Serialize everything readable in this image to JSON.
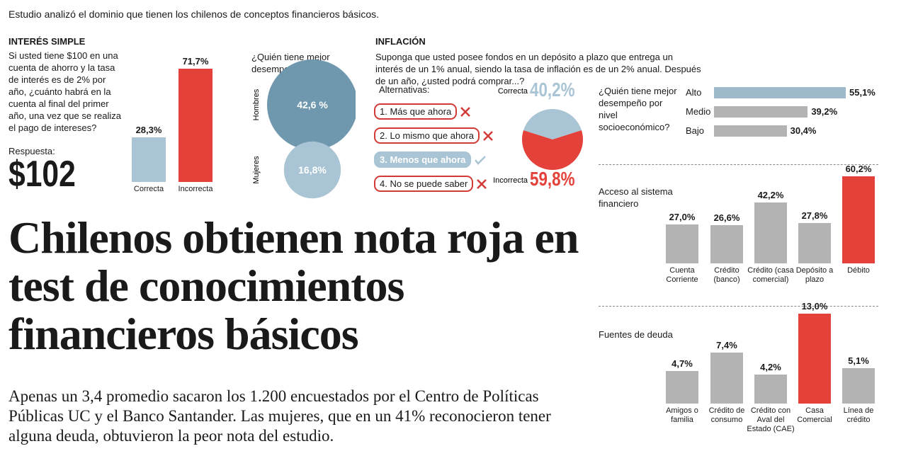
{
  "intro": "Estudio analizó el dominio que tienen los chilenos de conceptos financieros básicos.",
  "headline": "Chilenos obtienen nota roja en test de conocimientos financieros básicos",
  "body": "Apenas un 3,4 promedio sacaron los 1.200 encuestados por el Centro de Políticas Públicas UC y el Banco Santander. Las mujeres, que en un 41% reconocieron tener alguna deuda, obtuvieron la peor nota del estudio.",
  "chart_data": [
    {
      "type": "bar",
      "title": "INTERÉS SIMPLE",
      "question": "Si usted tiene $100 en una cuenta de ahorro y la tasa de interés es de 2% por año, ¿cuánto habrá en la cuenta al final del primer año, una vez que se realiza el pago de intereses?",
      "answer_label": "Respuesta:",
      "answer": "$102",
      "categories": [
        "Correcta",
        "Incorrecta"
      ],
      "values": [
        28.3,
        71.7
      ],
      "value_labels": [
        "28,3%",
        "71,7%"
      ],
      "colors": [
        "#a9c4d4",
        "#e5413b"
      ]
    },
    {
      "type": "bubble",
      "title": "¿Quién tiene mejor desempeño?",
      "categories": [
        "Hombres",
        "Mujeres"
      ],
      "values": [
        42.6,
        16.8
      ],
      "value_labels": [
        "42,6 %",
        "16,8%"
      ],
      "colors": [
        "#6f97ad",
        "#a9c4d4"
      ]
    },
    {
      "type": "pie",
      "title": "INFLACIÓN",
      "question": "Suponga que usted posee fondos en un depósito a plazo que entrega un interés de un 1% anual, siendo la tasa de inflación es de un 2% anual. Después de un año, ¿usted podrá comprar...?",
      "alternatives_title": "Alternativas:",
      "alternatives": [
        {
          "label": "1. Más que ahora",
          "correct": false
        },
        {
          "label": "2. Lo mismo que ahora",
          "correct": false
        },
        {
          "label": "3. Menos que ahora",
          "correct": true
        },
        {
          "label": "4. No se puede saber",
          "correct": false
        }
      ],
      "categories": [
        "Correcta",
        "Incorrecta"
      ],
      "values": [
        40.2,
        59.8
      ],
      "value_labels": [
        "40,2%",
        "59,8%"
      ],
      "colors": [
        "#a9c4d4",
        "#e5413b"
      ]
    },
    {
      "type": "hbar",
      "title": "¿Quién tiene mejor desempeño por nivel socioeconómico?",
      "categories": [
        "Alto",
        "Medio",
        "Bajo"
      ],
      "values": [
        55.1,
        39.2,
        30.4
      ],
      "value_labels": [
        "55,1%",
        "39,2%",
        "30,4%"
      ],
      "colors": [
        "#9dbacb",
        "#b3b3b3",
        "#b3b3b3"
      ]
    },
    {
      "type": "bar",
      "title": "Acceso al sistema financiero",
      "categories": [
        "Cuenta Corriente",
        "Crédito (banco)",
        "Crédito (casa comercial)",
        "Depósito a plazo",
        "Débito"
      ],
      "values": [
        27.0,
        26.6,
        42.2,
        27.8,
        60.2
      ],
      "value_labels": [
        "27,0%",
        "26,6%",
        "42,2%",
        "27,8%",
        "60,2%"
      ],
      "colors": [
        "#b3b3b3",
        "#b3b3b3",
        "#b3b3b3",
        "#b3b3b3",
        "#e5413b"
      ]
    },
    {
      "type": "bar",
      "title": "Fuentes de deuda",
      "categories": [
        "Amigos o familia",
        "Crédito de consumo",
        "Crédito con Aval del Estado (CAE)",
        "Casa Comercial",
        "Línea de crédito"
      ],
      "values": [
        4.7,
        7.4,
        4.2,
        13.0,
        5.1
      ],
      "value_labels": [
        "4,7%",
        "7,4%",
        "4,2%",
        "13,0%",
        "5,1%"
      ],
      "colors": [
        "#b3b3b3",
        "#b3b3b3",
        "#b3b3b3",
        "#e5413b",
        "#b3b3b3"
      ]
    }
  ]
}
